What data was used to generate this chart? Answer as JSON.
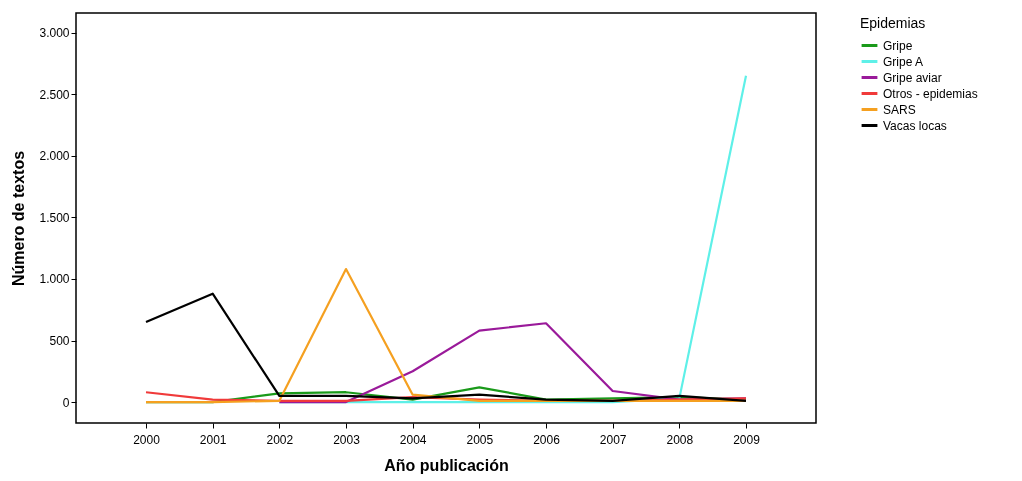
{
  "chart_data": {
    "type": "line",
    "xlabel": "Año publicación",
    "ylabel": "Número de textos",
    "legend_title": "Epidemias",
    "legend": "right",
    "x": [
      2000,
      2001,
      2002,
      2003,
      2004,
      2005,
      2006,
      2007,
      2008,
      2009
    ],
    "xlim": [
      1998.95,
      2010.05
    ],
    "xticks": [
      2000,
      2001,
      2002,
      2003,
      2004,
      2005,
      2006,
      2007,
      2008,
      2009
    ],
    "ylim": [
      -170,
      3160
    ],
    "yticks": [
      0,
      500,
      {
        "value": 1000,
        "label": "1.000"
      },
      {
        "value": 1500,
        "label": "1.500"
      },
      {
        "value": 2000,
        "label": "2.000"
      },
      {
        "value": 2500,
        "label": "2.500"
      },
      {
        "value": 3000,
        "label": "3.000"
      }
    ],
    "grid": false,
    "line_style": "solid",
    "marker": "none",
    "series": [
      {
        "name": "Gripe",
        "color": "#1a9a1a",
        "values": [
          0,
          0,
          70,
          80,
          20,
          120,
          20,
          30,
          40,
          20
        ]
      },
      {
        "name": "Gripe A",
        "color": "#5ef0e8",
        "values": [
          null,
          null,
          0,
          0,
          0,
          0,
          0,
          0,
          30,
          2650
        ]
      },
      {
        "name": "Gripe aviar",
        "color": "#9a1a9a",
        "values": [
          null,
          null,
          0,
          0,
          250,
          580,
          640,
          90,
          20,
          30
        ]
      },
      {
        "name": "Otros - epidemias",
        "color": "#f03a3a",
        "values": [
          80,
          20,
          10,
          10,
          40,
          20,
          10,
          10,
          20,
          30
        ]
      },
      {
        "name": "SARS",
        "color": "#f5a020",
        "values": [
          0,
          0,
          10,
          1080,
          60,
          10,
          10,
          10,
          10,
          10
        ]
      },
      {
        "name": "Vacas locas",
        "color": "#000000",
        "values": [
          650,
          880,
          50,
          50,
          30,
          60,
          20,
          10,
          50,
          10
        ]
      }
    ]
  }
}
